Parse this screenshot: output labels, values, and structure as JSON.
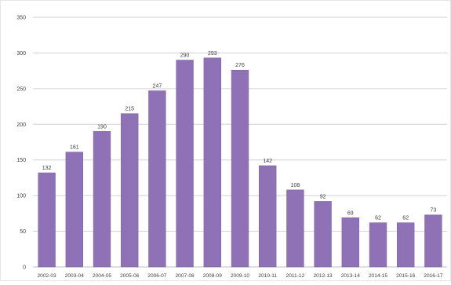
{
  "chart_data": {
    "type": "bar",
    "title": "",
    "xlabel": "",
    "ylabel": "",
    "categories": [
      "2002-03",
      "2003-04",
      "2004-05",
      "2005-06",
      "2006-07",
      "2007-08",
      "2008-09",
      "2009-10",
      "2010-11",
      "2011-12",
      "2012-13",
      "2013-14",
      "2014-15",
      "2015-16",
      "2016-17"
    ],
    "values": [
      132,
      161,
      190,
      215,
      247,
      290,
      293,
      276,
      142,
      108,
      92,
      69,
      62,
      62,
      73
    ],
    "data_labels": [
      "132",
      "161",
      "190",
      "215",
      "247",
      "290",
      "293",
      "276",
      "142",
      "108",
      "92",
      "69",
      "62",
      "62",
      "73"
    ],
    "ylim": [
      0,
      350
    ],
    "yticks": [
      0,
      50,
      100,
      150,
      200,
      250,
      300,
      350
    ],
    "ytick_labels": [
      "0",
      "50",
      "100",
      "150",
      "200",
      "250",
      "300",
      "350"
    ],
    "grid": true,
    "legend": "none",
    "colors": {
      "bar": "#8E72B5",
      "bar_edge": "#7A5FA3",
      "grid": "#D0D0D0",
      "axis": "#BFBFBF",
      "text": "#404040",
      "background": "#FFFFFF"
    }
  }
}
